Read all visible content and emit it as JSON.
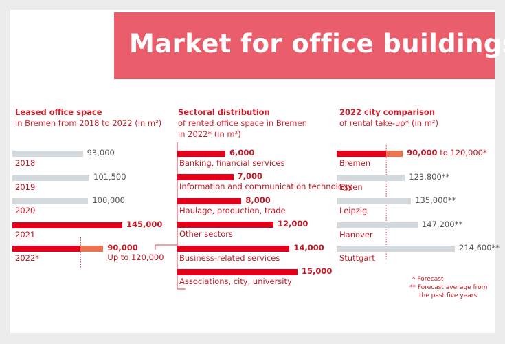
{
  "title": "Market for office buildings",
  "colors": {
    "banner": "#ea5d6b",
    "red": "#e2001a",
    "grey": "#d4d9de",
    "forecast": "#ec7350",
    "text_red": "#c01924"
  },
  "chart_data": [
    {
      "type": "bar",
      "title": "Leased office space",
      "subtitle": "in Bremen from 2018 to 2022 (in m²)",
      "categories": [
        "2018",
        "2019",
        "2020",
        "2021",
        "2022*"
      ],
      "values": [
        93000,
        101500,
        100000,
        145000,
        90000
      ],
      "value_labels": [
        "93,000",
        "101,500",
        "100,000",
        "145,000",
        "90,000"
      ],
      "forecast_upper": {
        "value": 120000,
        "label": "Up to 120,000"
      },
      "highlight": [
        "2021",
        "2022*"
      ]
    },
    {
      "type": "bar",
      "title": "Sectoral distribution",
      "subtitle": "of rented office space in Bremen",
      "subtitle2": "in 2022* (in m²)",
      "categories": [
        "Banking, financial services",
        "Information and communication technology",
        "Haulage, production, trade",
        "Other sectors",
        "Business-related services",
        "Associations, city, university"
      ],
      "values": [
        6000,
        7000,
        8000,
        12000,
        14000,
        15000
      ],
      "value_labels": [
        "6,000",
        "7,000",
        "8,000",
        "12,000",
        "14,000",
        "15,000"
      ]
    },
    {
      "type": "bar",
      "title": "2022 city comparison",
      "subtitle": "of rental take-up* (in m²)",
      "categories": [
        "Bremen",
        "Essen",
        "Leipzig",
        "Hanover",
        "Stuttgart"
      ],
      "values": [
        90000,
        123800,
        135000,
        147200,
        214600
      ],
      "value_labels": [
        "90,000",
        "123,800**",
        "135,000**",
        "147,200**",
        "214,600**"
      ],
      "bremen_upper": {
        "value": 120000,
        "label": " to 120,000*"
      },
      "highlight": [
        "Bremen"
      ]
    }
  ],
  "notes": {
    "forecast": "* Forecast",
    "forecast_avg_1": "** Forecast average from",
    "forecast_avg_2": "the past five years"
  }
}
